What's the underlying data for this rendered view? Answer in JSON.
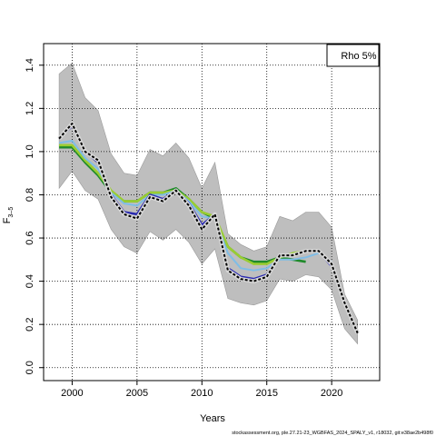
{
  "chart_data": {
    "type": "line",
    "xlabel": "Years",
    "ylabel_main": "F",
    "ylabel_sub": "3–5",
    "xlim": [
      1997.8,
      2023.7
    ],
    "ylim": [
      -0.06,
      1.5
    ],
    "x_ticks": [
      2000,
      2005,
      2010,
      2015,
      2020
    ],
    "y_ticks": [
      0.0,
      0.2,
      0.4,
      0.6,
      0.8,
      1.0,
      1.2,
      1.4
    ],
    "grid": true,
    "legend": {
      "label": "Rho 5%",
      "placement": "top-right"
    },
    "footer": "stockassessment.org, ple.27.21-23_WGBFAS_2024_SPALY_v1, r18032, git:e38ae2b498f0",
    "confidence_band": {
      "x": [
        1999,
        2000,
        2001,
        2002,
        2003,
        2004,
        2005,
        2006,
        2007,
        2008,
        2009,
        2010,
        2011,
        2012,
        2013,
        2014,
        2015,
        2016,
        2017,
        2018,
        2019,
        2020,
        2021,
        2022
      ],
      "upper": [
        1.36,
        1.41,
        1.25,
        1.19,
        0.99,
        0.9,
        0.89,
        1.01,
        0.98,
        1.04,
        0.97,
        0.83,
        0.95,
        0.62,
        0.57,
        0.54,
        0.56,
        0.7,
        0.68,
        0.72,
        0.72,
        0.65,
        0.34,
        0.22
      ],
      "lower": [
        0.83,
        0.91,
        0.82,
        0.78,
        0.64,
        0.56,
        0.53,
        0.63,
        0.59,
        0.64,
        0.58,
        0.48,
        0.55,
        0.32,
        0.3,
        0.29,
        0.31,
        0.41,
        0.4,
        0.43,
        0.42,
        0.36,
        0.18,
        0.11
      ]
    },
    "series": [
      {
        "role": "base-estimate",
        "color": "#000000",
        "dashed": true,
        "x": [
          1999,
          2000,
          2001,
          2002,
          2003,
          2004,
          2005,
          2006,
          2007,
          2008,
          2009,
          2010,
          2011,
          2012,
          2013,
          2014,
          2015,
          2016,
          2017,
          2018,
          2019,
          2020,
          2021,
          2022
        ],
        "values": [
          1.06,
          1.13,
          1.0,
          0.96,
          0.79,
          0.71,
          0.69,
          0.79,
          0.77,
          0.82,
          0.75,
          0.64,
          0.71,
          0.45,
          0.41,
          0.4,
          0.42,
          0.52,
          0.52,
          0.54,
          0.54,
          0.48,
          0.3,
          0.16
        ]
      },
      {
        "role": "peel-1",
        "color": "#2b2bb0",
        "x": [
          1999,
          2000,
          2001,
          2002,
          2003,
          2004,
          2005,
          2006,
          2007,
          2008,
          2009,
          2010,
          2011,
          2012,
          2013,
          2014,
          2015,
          2016,
          2017,
          2018,
          2019,
          2020,
          2021
        ],
        "values": [
          1.06,
          1.12,
          1.0,
          0.95,
          0.8,
          0.72,
          0.71,
          0.8,
          0.78,
          0.82,
          0.76,
          0.66,
          0.71,
          0.46,
          0.42,
          0.41,
          0.43,
          0.52,
          0.52,
          0.54,
          0.54,
          0.47,
          0.31
        ]
      },
      {
        "role": "peel-2",
        "color": "#7fbde6",
        "x": [
          1999,
          2000,
          2001,
          2002,
          2003,
          2004,
          2005,
          2006,
          2007,
          2008,
          2009,
          2010,
          2011,
          2012,
          2013,
          2014,
          2015,
          2016,
          2017,
          2018,
          2019,
          2020
        ],
        "values": [
          1.04,
          1.05,
          0.97,
          0.92,
          0.81,
          0.76,
          0.75,
          0.8,
          0.8,
          0.82,
          0.77,
          0.7,
          0.69,
          0.53,
          0.46,
          0.45,
          0.46,
          0.5,
          0.5,
          0.51,
          0.53,
          0.49
        ]
      },
      {
        "role": "peel-3",
        "color": "#9acd32",
        "x": [
          1999,
          2000,
          2001,
          2002,
          2003,
          2004,
          2005,
          2006,
          2007,
          2008,
          2009,
          2010,
          2011,
          2012,
          2013,
          2014,
          2015,
          2016,
          2017,
          2018,
          2019
        ],
        "values": [
          1.03,
          1.03,
          0.96,
          0.9,
          0.82,
          0.77,
          0.77,
          0.81,
          0.81,
          0.82,
          0.78,
          0.72,
          0.7,
          0.56,
          0.51,
          0.48,
          0.48,
          0.51,
          0.53,
          0.54,
          0.54
        ]
      },
      {
        "role": "peel-4",
        "color": "#1f8a2a",
        "x": [
          1999,
          2000,
          2001,
          2002,
          2003,
          2004,
          2005,
          2006,
          2007,
          2008,
          2009,
          2010,
          2011,
          2012,
          2013,
          2014,
          2015,
          2016,
          2017,
          2018
        ],
        "values": [
          1.02,
          1.02,
          0.95,
          0.89,
          0.81,
          0.77,
          0.77,
          0.81,
          0.81,
          0.83,
          0.78,
          0.72,
          0.69,
          0.56,
          0.51,
          0.49,
          0.49,
          0.51,
          0.5,
          0.49
        ]
      }
    ]
  }
}
